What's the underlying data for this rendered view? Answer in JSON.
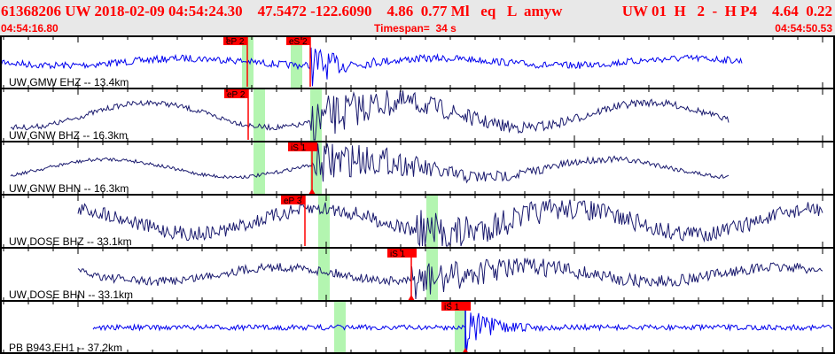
{
  "header": {
    "event_line": "61368206 UW 2018-02-09 04:54:24.30    47.5472 -122.6090    4.86  0.77 Ml   eq   L  amyw",
    "solution_line": "UW 01  H   2  -  H P4    4.64  0.22",
    "start_time": "04:54:16.80",
    "end_time": "04:54:50.53",
    "timespan": "Timespan=  34 s"
  },
  "colors": {
    "trace_blue": "#0000ee",
    "trace_navy": "#1a1a6e",
    "pick": "#ff0000",
    "window": "#b3f5b0"
  },
  "channels": [
    {
      "label": "UW GMW EHZ -- 13.4km",
      "trace": "blue",
      "picks": [
        {
          "label": "eP 2"
        },
        {
          "label": "eS 2"
        }
      ]
    },
    {
      "label": "UW GNW BHZ -- 16.3km",
      "trace": "navy",
      "picks": [
        {
          "label": "eP 2"
        }
      ]
    },
    {
      "label": "UW GNW BHN -- 16.3km",
      "trace": "navy",
      "picks": [
        {
          "label": "iS 1"
        }
      ]
    },
    {
      "label": "UW DOSE BHZ -- 33.1km",
      "trace": "navy",
      "picks": [
        {
          "label": "eP 3"
        }
      ]
    },
    {
      "label": "UW DOSE BHN -- 33.1km",
      "trace": "navy",
      "picks": [
        {
          "label": "iS 1"
        }
      ]
    },
    {
      "label": "PB B943 EH1 -- 37.2km",
      "trace": "blue",
      "picks": [
        {
          "label": "iS 1"
        }
      ]
    }
  ]
}
